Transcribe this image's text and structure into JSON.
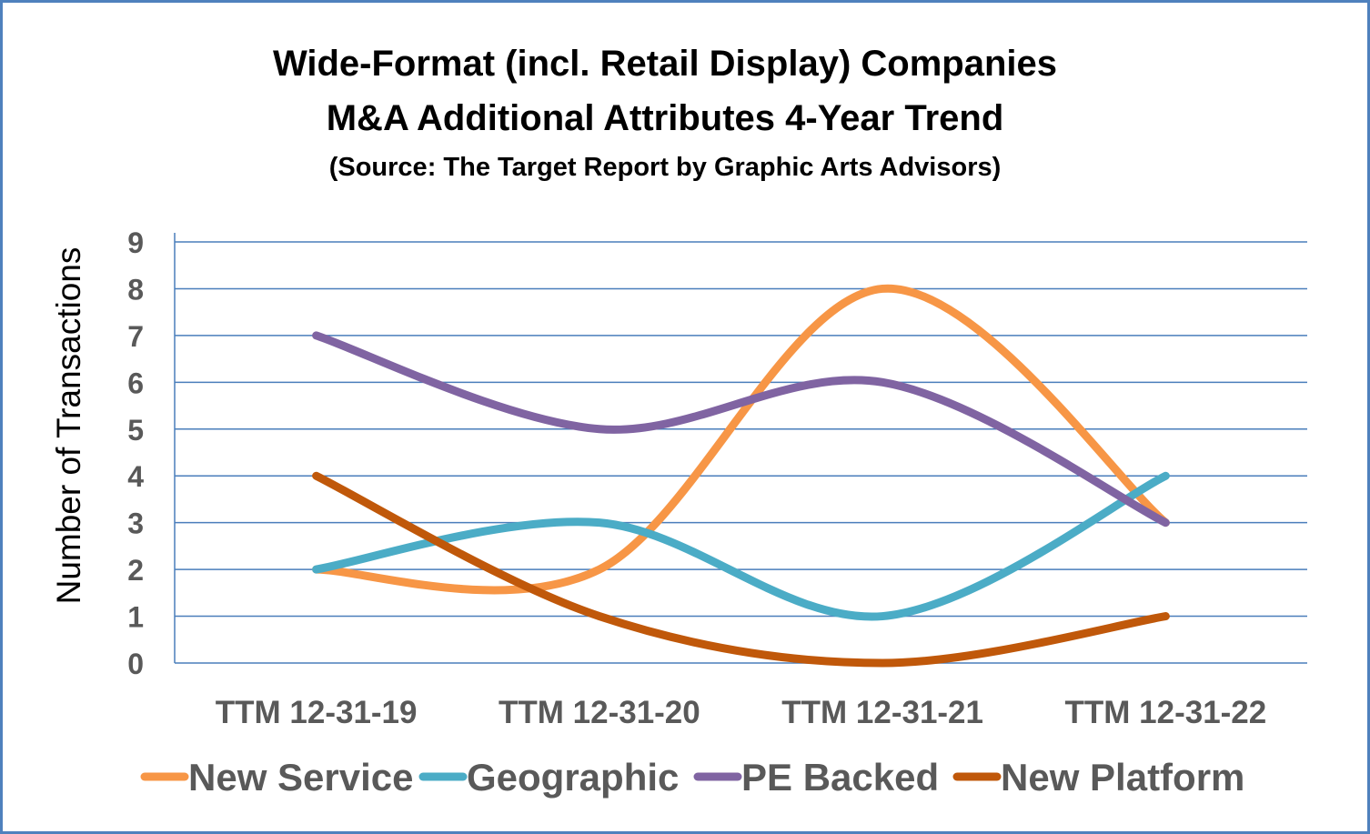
{
  "chart_data": {
    "type": "line",
    "title_lines": [
      "Wide-Format (incl. Retail Display) Companies",
      "M&A Additional Attributes 4-Year Trend",
      "(Source: The Target Report by Graphic Arts Advisors)"
    ],
    "xlabel": "",
    "ylabel": "Number of Transactions",
    "categories": [
      "TTM 12-31-19",
      "TTM 12-31-20",
      "TTM 12-31-21",
      "TTM 12-31-22"
    ],
    "ylim": [
      0,
      9
    ],
    "yticks": [
      0,
      1,
      2,
      3,
      4,
      5,
      6,
      7,
      8,
      9
    ],
    "grid": true,
    "smooth": true,
    "legend_position": "bottom",
    "series": [
      {
        "name": "New Service",
        "values": [
          2,
          2,
          8,
          3
        ],
        "color": "#f79646"
      },
      {
        "name": "Geographic",
        "values": [
          2,
          3,
          1,
          4
        ],
        "color": "#4bacc6"
      },
      {
        "name": "PE Backed",
        "values": [
          7,
          5,
          6,
          3
        ],
        "color": "#8064a2"
      },
      {
        "name": "New Platform",
        "values": [
          4,
          1,
          0,
          1
        ],
        "color": "#c0580a"
      }
    ]
  }
}
